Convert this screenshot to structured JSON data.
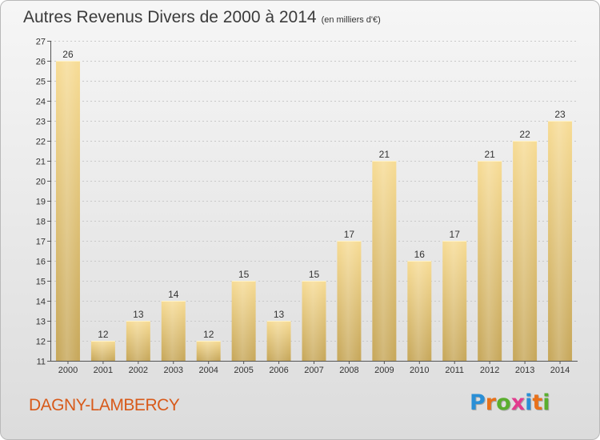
{
  "title": "Autres Revenus Divers de 2000 à 2014",
  "title_unit": "(en milliers d'€)",
  "town": "DAGNY-LAMBERCY",
  "logo": {
    "letters": [
      "P",
      "r",
      "o",
      "x",
      "i",
      "t",
      "i"
    ],
    "colors": [
      "#2a8fd6",
      "#e8711a",
      "#5aae2e",
      "#e23b8e",
      "#2a8fd6",
      "#e8711a",
      "#5aae2e"
    ]
  },
  "colors": {
    "bar_light": "#f7dc96",
    "bar_dark": "#c7a85c",
    "bar_highlight": "#fff3c8",
    "accent": "#d85a1a"
  },
  "chart_data": {
    "type": "bar",
    "categories": [
      "2000",
      "2001",
      "2002",
      "2003",
      "2004",
      "2005",
      "2006",
      "2007",
      "2008",
      "2009",
      "2010",
      "2011",
      "2012",
      "2013",
      "2014"
    ],
    "values": [
      26,
      12,
      13,
      14,
      12,
      15,
      13,
      15,
      17,
      21,
      16,
      17,
      21,
      22,
      23
    ],
    "ylim": [
      11,
      27
    ],
    "yticks": [
      11,
      12,
      13,
      14,
      15,
      16,
      17,
      18,
      19,
      20,
      21,
      22,
      23,
      24,
      25,
      26,
      27
    ],
    "grid": true,
    "xlabel": "",
    "ylabel": ""
  }
}
